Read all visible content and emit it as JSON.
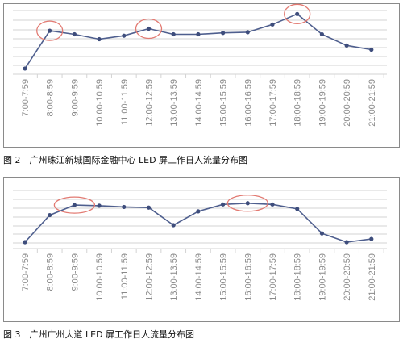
{
  "figures": [
    {
      "caption": "图 2　广州珠江新城国际金融中心 LED 屏工作日人流量分布图",
      "chart_data": {
        "type": "line",
        "categories": [
          "7:00-7:59",
          "8:00-8:59",
          "9:00-9:59",
          "10:00-10:59",
          "11:00-11:59",
          "12:00-12:59",
          "13:00-13:59",
          "14:00-14:59",
          "15:00-15:59",
          "16:00-16:59",
          "17:00-17:59",
          "18:00-18:59",
          "19:00-19:59",
          "20:00-20:59",
          "21:00-21:59"
        ],
        "series": [
          {
            "values": [
              0.7,
              6.1,
              5.6,
              4.9,
              5.4,
              6.4,
              5.6,
              5.6,
              5.8,
              5.9,
              7.0,
              8.5,
              5.6,
              4.0,
              3.4
            ]
          }
        ],
        "ylim": [
          0,
          9
        ],
        "grid": true,
        "highlight_circles": [
          "8:00-8:59",
          "12:00-12:59",
          "18:00-18:59"
        ],
        "colors": {
          "line": "#4f5f8e",
          "marker": "#3e4d7c",
          "circle": "#e27a72",
          "grid": "#d3d3d3",
          "tick": "#8a8a8a"
        }
      }
    },
    {
      "caption": "图 3　广州广州大道 LED 屏工作日人流量分布图",
      "chart_data": {
        "type": "line",
        "categories": [
          "7:00-7:59",
          "8:00-8:59",
          "9:00-9:59",
          "10:00-10:59",
          "11:00-11:59",
          "12:00-12:59",
          "13:00-13:59",
          "14:00-14:59",
          "15:00-15:59",
          "16:00-16:59",
          "17:00-17:59",
          "18:00-18:59",
          "19:00-19:59",
          "20:00-20:59",
          "21:00-21:59"
        ],
        "series": [
          {
            "values": [
              0.9,
              5.2,
              6.8,
              6.7,
              6.5,
              6.4,
              3.6,
              5.8,
              6.9,
              7.1,
              6.9,
              6.2,
              2.3,
              0.9,
              1.4
            ]
          }
        ],
        "ylim": [
          0,
          9
        ],
        "grid": true,
        "highlight_circles": [
          "9:00-9:59",
          "16:00-16:59"
        ],
        "colors": {
          "line": "#4f5f8e",
          "marker": "#3e4d7c",
          "circle": "#e27a72",
          "grid": "#d3d3d3",
          "tick": "#8a8a8a"
        }
      }
    }
  ]
}
